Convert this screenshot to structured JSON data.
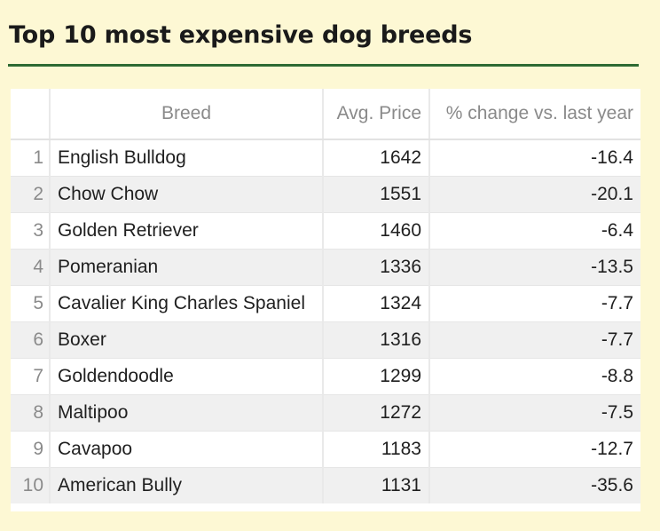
{
  "title": "Top 10 most expensive dog breeds",
  "colors": {
    "background": "#fdf8d4",
    "accent_rule": "#2e6b33"
  },
  "table": {
    "columns": [
      "",
      "Breed",
      "Avg. Price",
      "% change vs. last year"
    ],
    "rows": [
      {
        "index": "1",
        "breed": "English Bulldog",
        "price": "1642",
        "change": "-16.4"
      },
      {
        "index": "2",
        "breed": "Chow Chow",
        "price": "1551",
        "change": "-20.1"
      },
      {
        "index": "3",
        "breed": "Golden Retriever",
        "price": "1460",
        "change": "-6.4"
      },
      {
        "index": "4",
        "breed": "Pomeranian",
        "price": "1336",
        "change": "-13.5"
      },
      {
        "index": "5",
        "breed": "Cavalier King Charles Spaniel",
        "price": "1324",
        "change": "-7.7"
      },
      {
        "index": "6",
        "breed": "Boxer",
        "price": "1316",
        "change": "-7.7"
      },
      {
        "index": "7",
        "breed": "Goldendoodle",
        "price": "1299",
        "change": "-8.8"
      },
      {
        "index": "8",
        "breed": "Maltipoo",
        "price": "1272",
        "change": "-7.5"
      },
      {
        "index": "9",
        "breed": "Cavapoo",
        "price": "1183",
        "change": "-12.7"
      },
      {
        "index": "10",
        "breed": "American Bully",
        "price": "1131",
        "change": "-35.6"
      }
    ]
  }
}
